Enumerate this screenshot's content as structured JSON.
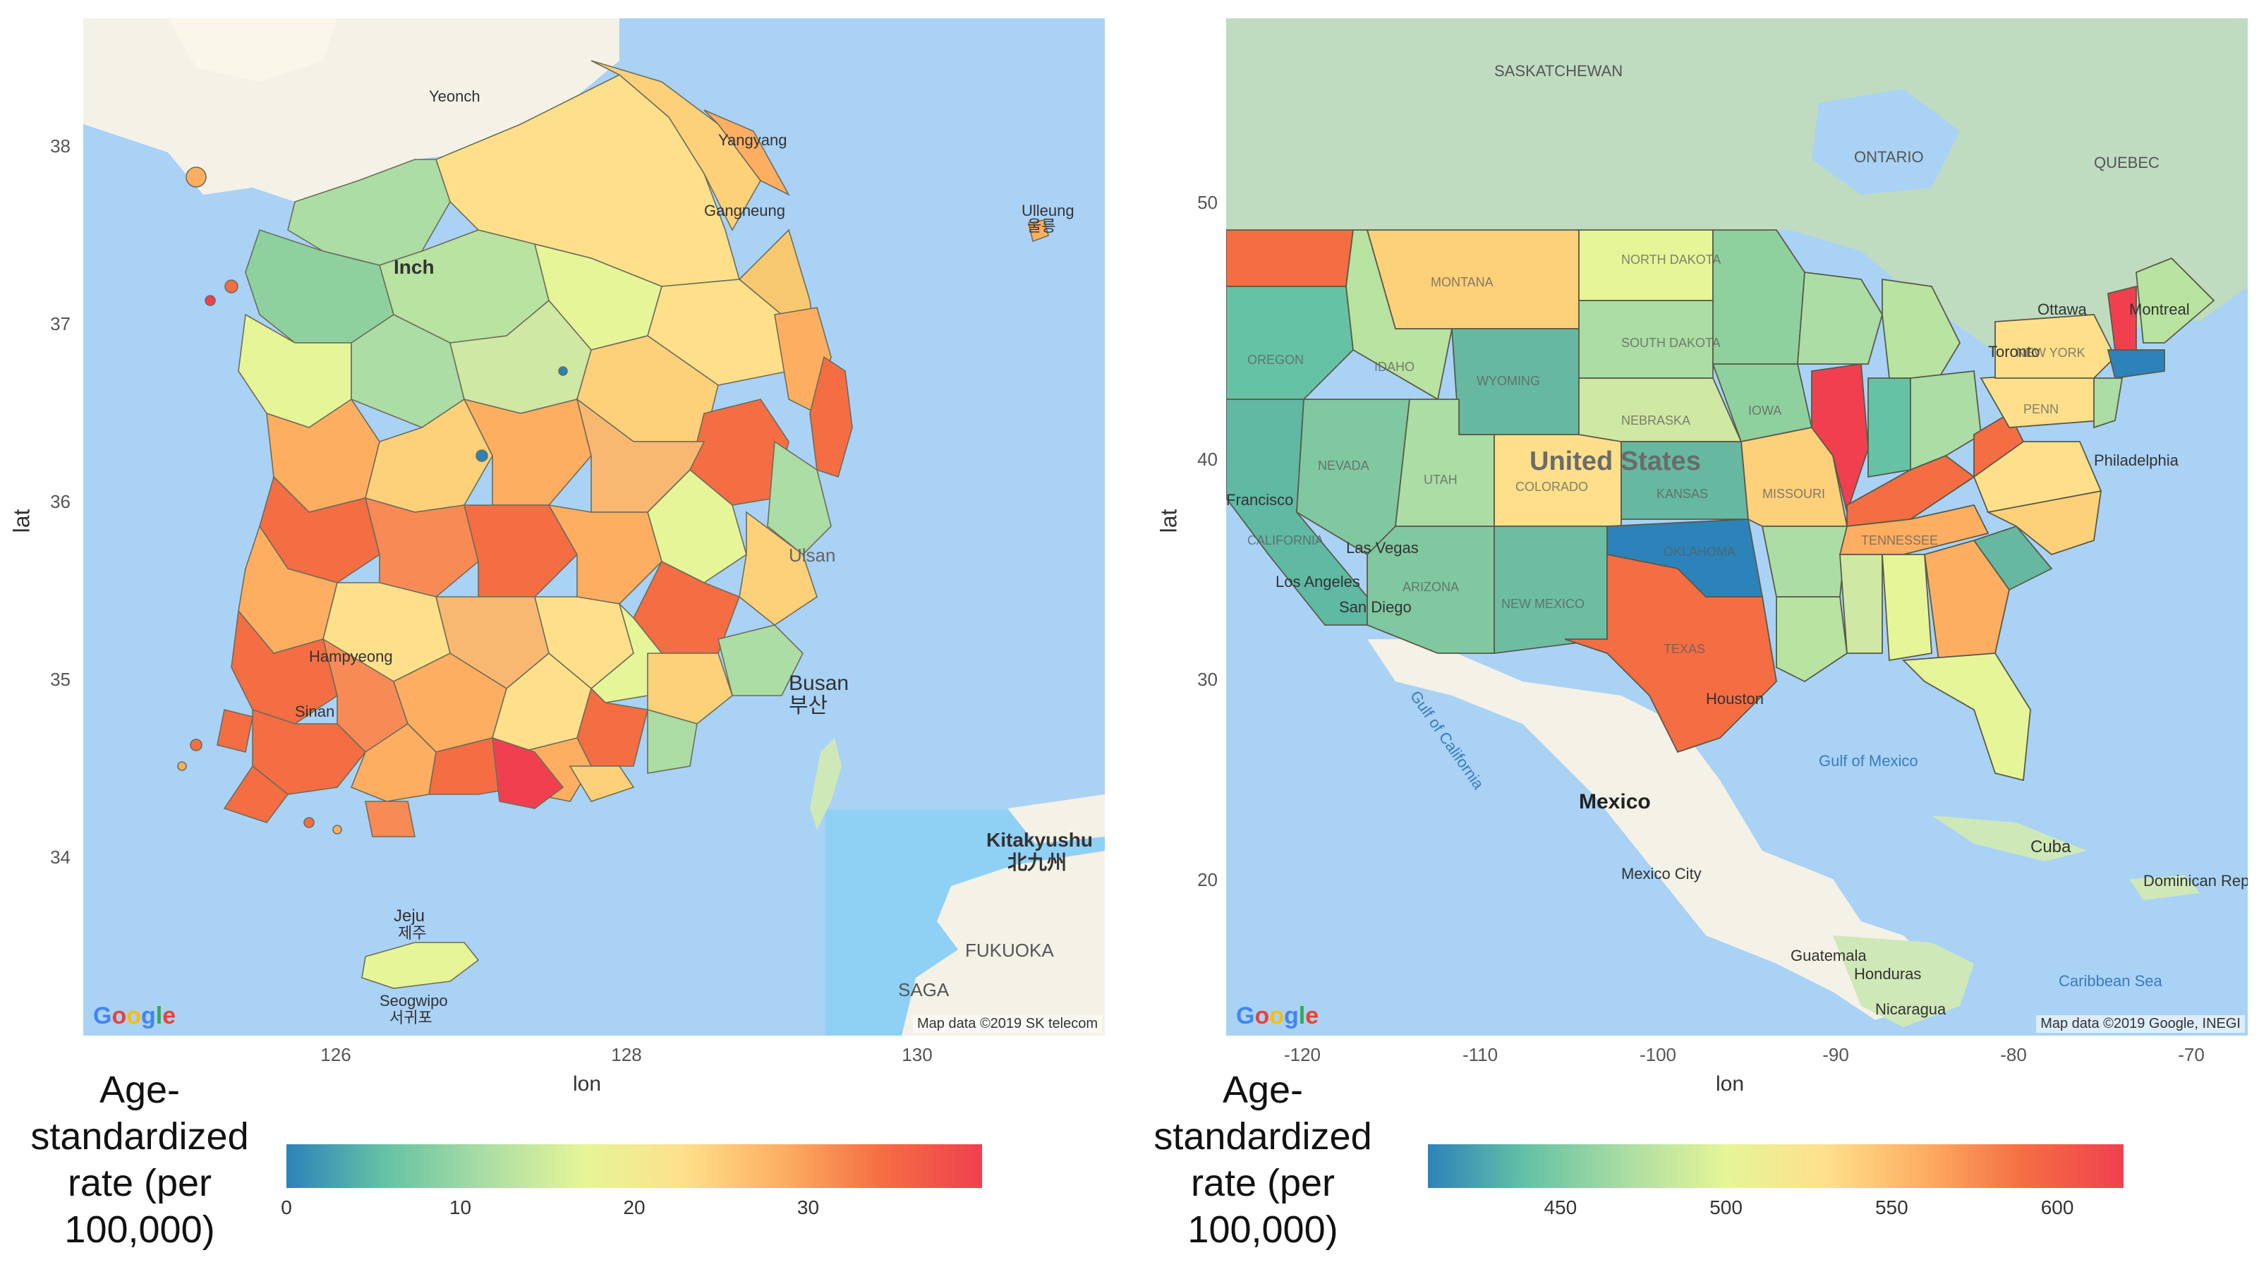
{
  "korea": {
    "x_ticks": [
      "126",
      "128",
      "130"
    ],
    "y_ticks": [
      "38",
      "37",
      "36",
      "35",
      "34"
    ],
    "xlabel": "lon",
    "ylabel": "lat",
    "attribution": "Map data ©2019 SK telecom",
    "google": "Google",
    "places": {
      "yeoncheon": "Yeonch",
      "yangyang": "Yangyang",
      "gangneung": "Gangneung",
      "ulleung": "Ulleung",
      "ulleung_kr": "울릉",
      "incheon": "Inch",
      "busan": "Busan",
      "busan_kr": "부산",
      "ulsan": "Ulsan",
      "hampyeong": "Hampyeong",
      "sinan": "Sinan",
      "jeju": "Jeju",
      "jeju_kr": "제주",
      "seogwipo": "Seogwipo",
      "seogwipo_kr": "서귀포",
      "kitakyushu": "Kitakyushu",
      "kitakyushu_jp": "北九州",
      "fukuoka": "FUKUOKA",
      "saga": "SAGA"
    },
    "legend": {
      "title": "Age-standardized rate (per 100,000)",
      "ticks": [
        "0",
        "10",
        "20",
        "30"
      ],
      "tick_values": [
        0,
        10,
        20,
        30
      ],
      "range": [
        0,
        40
      ]
    }
  },
  "usa": {
    "x_ticks": [
      "-120",
      "-110",
      "-100",
      "-90",
      "-80",
      "-70"
    ],
    "y_ticks": [
      "50",
      "40",
      "30",
      "20"
    ],
    "xlabel": "lon",
    "ylabel": "lat",
    "attribution": "Map data ©2019 Google, INEGI",
    "google": "Google",
    "places": {
      "saskatchewan": "SASKATCHEWAN",
      "ontario": "ONTARIO",
      "quebec": "QUEBEC",
      "ottawa": "Ottawa",
      "montreal": "Montreal",
      "toronto": "Toronto",
      "united_states": "United States",
      "philadelphia": "Philadelphia",
      "san_francisco": "Francisco",
      "las_vegas": "Las Vegas",
      "los_angeles": "Los Angeles",
      "san_diego": "San Diego",
      "houston": "Houston",
      "gulf_of_california": "Gulf of California",
      "gulf_of_mexico": "Gulf of Mexico",
      "mexico": "Mexico",
      "mexico_city": "Mexico City",
      "cuba": "Cuba",
      "dominican_republic": "Dominican Republic",
      "guatemala": "Guatemala",
      "honduras": "Honduras",
      "nicaragua": "Nicaragua",
      "caribbean_sea": "Caribbean Sea",
      "montana": "MONTANA",
      "north_dakota": "NORTH DAKOTA",
      "south_dakota": "SOUTH DAKOTA",
      "wyoming": "WYOMING",
      "nebraska": "NEBRASKA",
      "oregon": "OREGON",
      "idaho": "IDAHO",
      "nevada": "NEVADA",
      "utah": "UTAH",
      "colorado": "COLORADO",
      "kansas": "KANSAS",
      "california": "CALIFORNIA",
      "arizona": "ARIZONA",
      "new_mexico": "NEW MEXICO",
      "oklahoma": "OKLAHOMA",
      "texas": "TEXAS",
      "iowa": "IOWA",
      "missouri": "MISSOURI",
      "tennessee": "TENNESSEE",
      "new_york": "NEW YORK",
      "penn": "PENN"
    },
    "legend": {
      "title": "Age-standardized rate (per 100,000)",
      "ticks": [
        "450",
        "500",
        "550",
        "600"
      ],
      "tick_values": [
        450,
        500,
        550,
        600
      ],
      "range": [
        410,
        620
      ]
    }
  },
  "colors": {
    "water": "#a9d2f5",
    "land": "#f4f1e6",
    "scale": [
      "#2b83ba",
      "#66c2a5",
      "#abdda4",
      "#e6f598",
      "#fee08b",
      "#fdae61",
      "#f46d43",
      "#f0404f"
    ]
  }
}
